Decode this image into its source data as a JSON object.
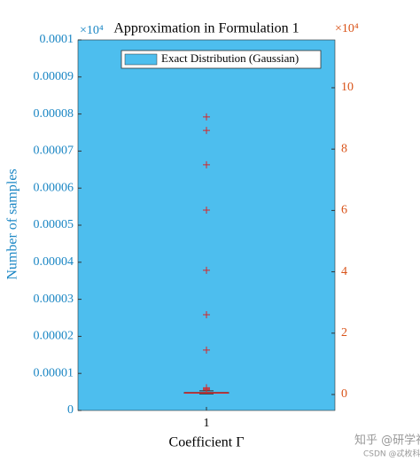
{
  "chart_data": {
    "type": "box",
    "title": "Approximation in Formulation 1",
    "xlabel": "Coefficient Γ",
    "ylabel": "Number of samples",
    "categories": [
      "1"
    ],
    "left_multiplier": "×10⁴",
    "right_multiplier": "×10⁴",
    "ylim": [
      0,
      0.0001
    ],
    "yticks": [
      0,
      1e-05,
      2e-05,
      3e-05,
      4e-05,
      5e-05,
      6e-05,
      7e-05,
      8e-05,
      9e-05,
      0.0001
    ],
    "y_color": "#1a86c4",
    "y2lim": [
      -0.52,
      11.56
    ],
    "y2ticks": [
      0,
      2,
      4,
      6,
      8,
      10
    ],
    "y2_color": "#d95319",
    "fill_series": {
      "name": "Exact Distribution (Gaussian)",
      "color": "#4dbeee"
    },
    "box": {
      "axis": "y2",
      "color": "#d62728",
      "whislo": 0.02,
      "q1": 0.04,
      "median": 0.05,
      "q3": 0.07,
      "whishi": 0.12,
      "outliers": [
        0.15,
        0.18,
        0.22,
        1.45,
        2.6,
        4.05,
        6.01,
        7.49,
        8.61,
        9.05
      ]
    },
    "watermarks": [
      "知乎 @研学社",
      "CSDN @忒枚科研社"
    ]
  }
}
